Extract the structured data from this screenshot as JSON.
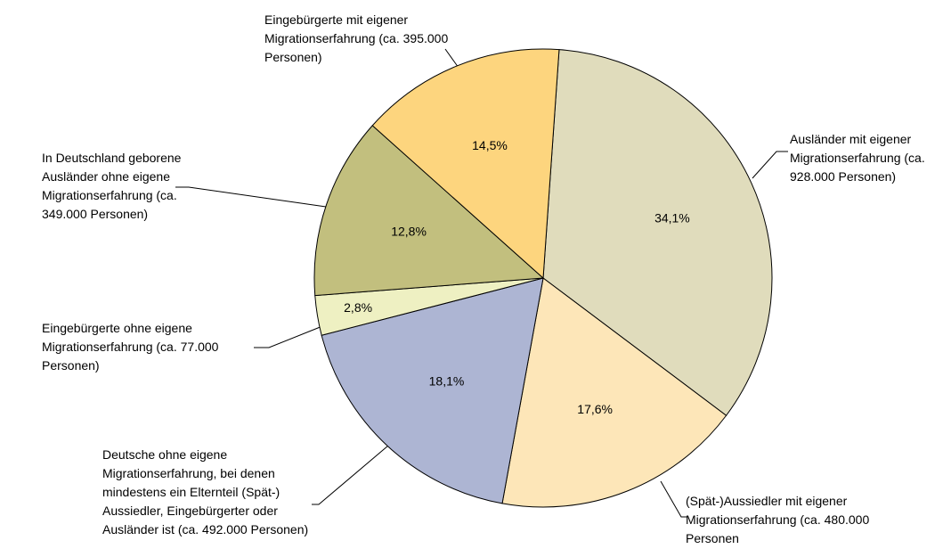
{
  "chart_data": {
    "type": "pie",
    "categories": [
      "Ausländer mit eigener Migrationserfahrung (ca. 928.000 Personen)",
      "(Spät-)Aussiedler mit eigener Migrationserfahrung (ca. 480.000 Personen",
      "Deutsche ohne eigene Migrationserfahrung, bei denen mindestens ein Elternteil (Spät-) Aussiedler, Eingebürgerter oder Ausländer ist (ca. 492.000 Personen)",
      "Eingebürgerte ohne eigene Migrationserfahrung (ca. 77.000 Personen)",
      "In Deutschland geborene Ausländer ohne eigene Migrationserfahrung (ca. 349.000 Personen)",
      "Eingebürgerte mit eigener Migrationserfahrung (ca. 395.000 Personen)"
    ],
    "values": [
      34.1,
      17.6,
      18.1,
      2.8,
      12.8,
      14.5
    ],
    "value_labels": [
      "34,1%",
      "17,6%",
      "18,1%",
      "2,8%",
      "12,8%",
      "14,5%"
    ],
    "colors": [
      "#e0dcbc",
      "#fde6b8",
      "#adb5d3",
      "#eef0c2",
      "#c2bf7e",
      "#fdd57e"
    ]
  }
}
